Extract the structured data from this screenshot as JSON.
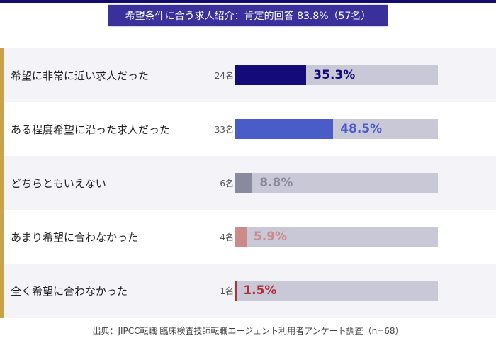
{
  "chart_data": {
    "type": "bar",
    "title": "希望条件に合う求人紹介：肯定的回答 83.8%（57名）",
    "categories": [
      "希望に非常に近い求人だった",
      "ある程度希望に沿った求人だった",
      "どちらともいえない",
      "あまり希望に合わなかった",
      "全く希望に合わなかった"
    ],
    "counts": [
      "24名",
      "33名",
      "6名",
      "4名",
      "1名"
    ],
    "values": [
      35.3,
      48.5,
      8.8,
      5.9,
      1.5
    ],
    "labels": [
      "35.3%",
      "48.5%",
      "8.8%",
      "5.9%",
      "1.5%"
    ],
    "colors": [
      "#150a7a",
      "#4a5cc8",
      "#8a8a9e",
      "#cc8a88",
      "#b0303a"
    ],
    "xlim": [
      0,
      100
    ],
    "source": "出典：JIPCC転職 臨床検査技師転職エージェント利用者アンケート調査（n=68）"
  }
}
